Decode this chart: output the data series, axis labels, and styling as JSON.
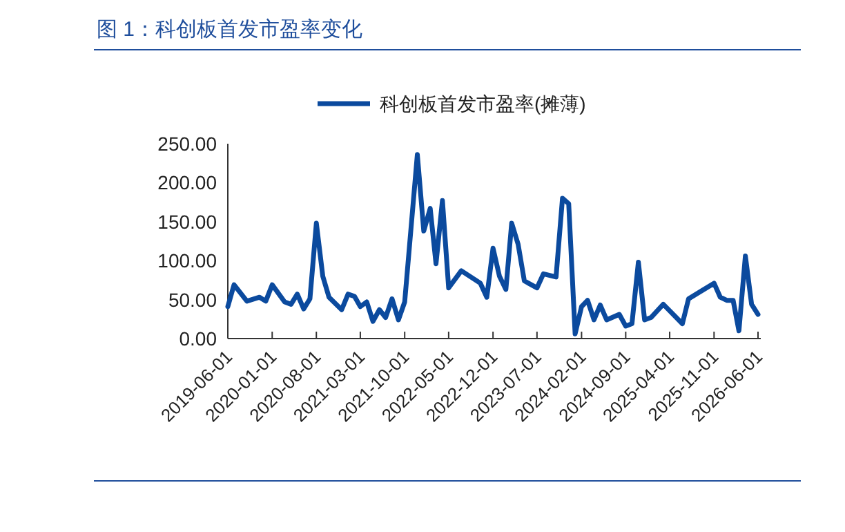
{
  "chart_data": {
    "type": "line",
    "title": "图 1：科创板首发市盈率变化",
    "legend": "top",
    "grid": false,
    "marker": "none",
    "line_style": "solid",
    "x": [
      "2019-06",
      "2019-07",
      "2019-09",
      "2019-11",
      "2019-12",
      "2020-01",
      "2020-03",
      "2020-04",
      "2020-05",
      "2020-06",
      "2020-07",
      "2020-08",
      "2020-09",
      "2020-10",
      "2020-12",
      "2021-01",
      "2021-02",
      "2021-03",
      "2021-04",
      "2021-05",
      "2021-06",
      "2021-07",
      "2021-08",
      "2021-09",
      "2021-10",
      "2021-12",
      "2022-01",
      "2022-02",
      "2022-03",
      "2022-04",
      "2022-05",
      "2022-07",
      "2022-10",
      "2022-11",
      "2022-12",
      "2023-01",
      "2023-02",
      "2023-03",
      "2023-04",
      "2023-05",
      "2023-07",
      "2023-08",
      "2023-10",
      "2023-11",
      "2023-12",
      "2024-01",
      "2024-02",
      "2024-03",
      "2024-04",
      "2024-05",
      "2024-06",
      "2024-08",
      "2024-09",
      "2024-10",
      "2024-11",
      "2024-12",
      "2025-01",
      "2025-03",
      "2025-06",
      "2025-07",
      "2025-11",
      "2025-12",
      "2026-01",
      "2026-02",
      "2026-03",
      "2026-04",
      "2026-05",
      "2026-06"
    ],
    "series": [
      {
        "name": "科创板首发市盈率(摊薄)",
        "color": "#0b4a9e",
        "values": [
          41,
          69,
          48,
          53,
          48,
          69,
          47,
          44,
          57,
          38,
          51,
          148,
          80,
          53,
          37,
          57,
          54,
          41,
          47,
          22,
          37,
          27,
          51,
          24,
          47,
          236,
          138,
          167,
          96,
          177,
          65,
          87,
          71,
          53,
          116,
          80,
          63,
          148,
          121,
          74,
          65,
          83,
          79,
          180,
          173,
          6,
          41,
          49,
          24,
          43,
          24,
          31,
          16,
          19,
          98,
          24,
          27,
          44,
          19,
          51,
          71,
          53,
          49,
          49,
          10,
          106,
          44,
          31
        ]
      }
    ],
    "xlim": [
      "2019-06-01",
      "2026-06-01"
    ],
    "xticks": [
      "2019-06-01",
      "2020-01-01",
      "2020-08-01",
      "2021-03-01",
      "2021-10-01",
      "2022-05-01",
      "2022-12-01",
      "2023-07-01",
      "2024-02-01",
      "2024-09-01",
      "2025-04-01",
      "2025-11-01",
      "2026-06-01"
    ],
    "ylim": [
      0,
      250
    ],
    "yticks": [
      {
        "value": 0,
        "label": "0.00"
      },
      {
        "value": 50,
        "label": "50.00"
      },
      {
        "value": 100,
        "label": "100.00"
      },
      {
        "value": 150,
        "label": "150.00"
      },
      {
        "value": 200,
        "label": "200.00"
      },
      {
        "value": 250,
        "label": "250.00"
      }
    ]
  }
}
